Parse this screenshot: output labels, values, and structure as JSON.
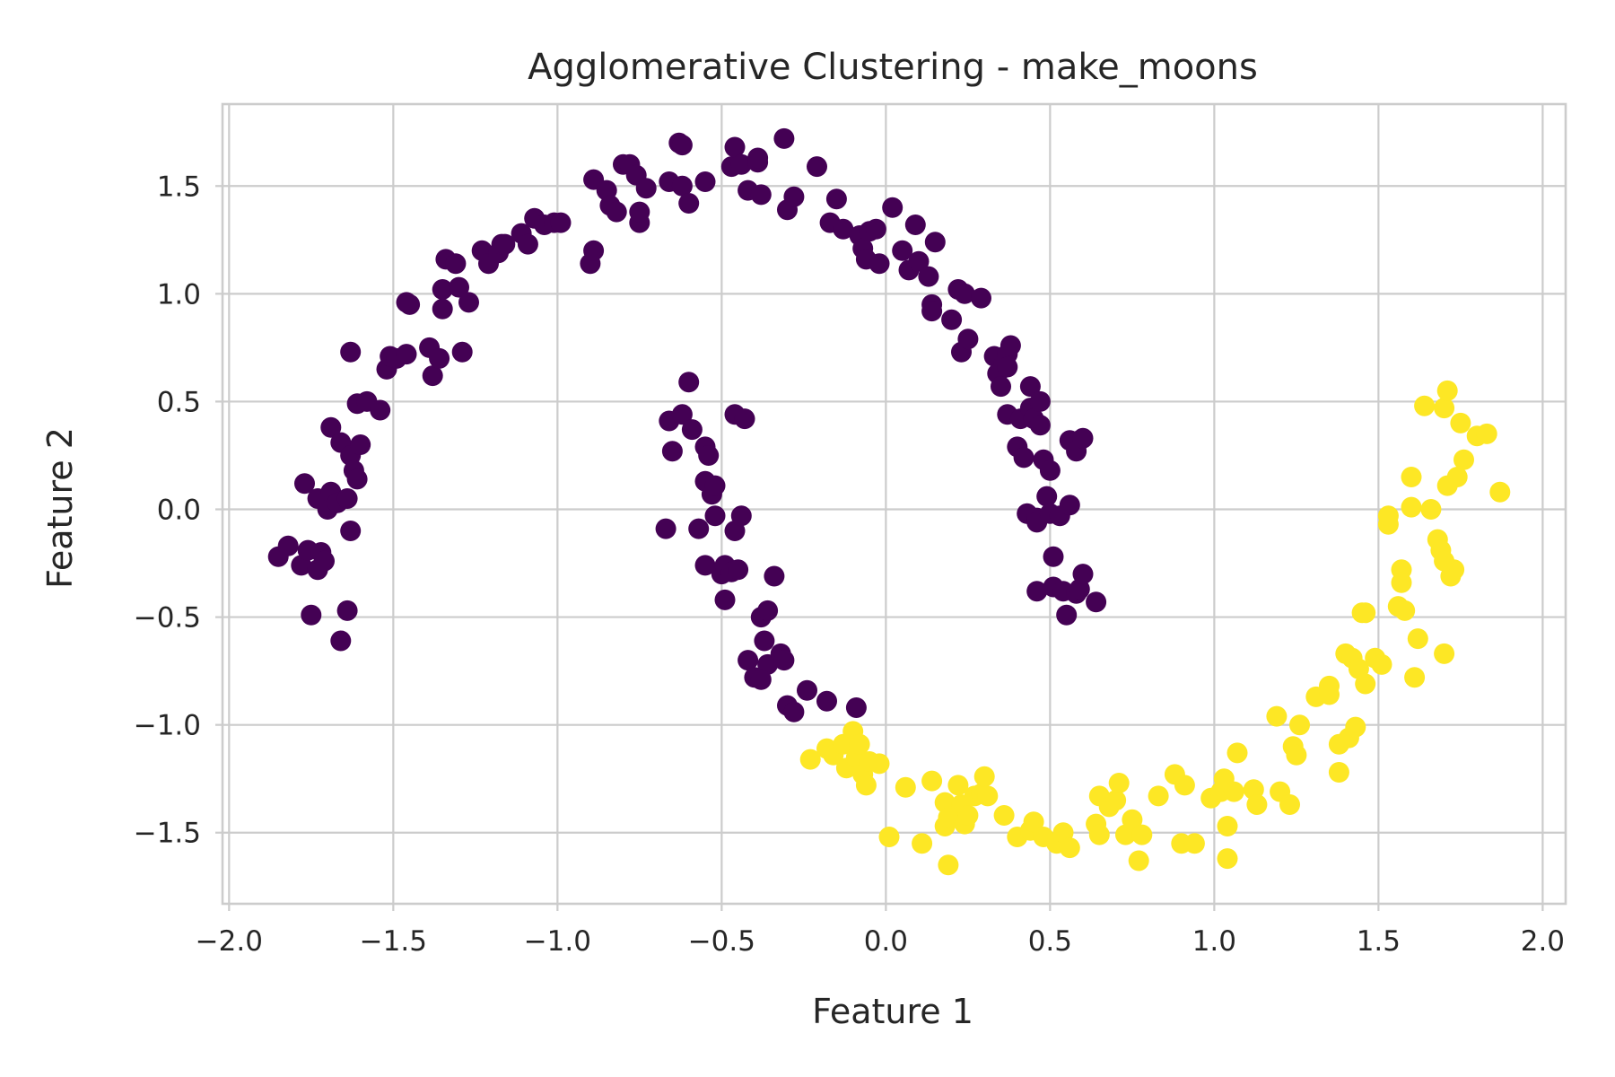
{
  "chart_data": {
    "type": "scatter",
    "title": "Agglomerative Clustering - make_moons",
    "xlabel": "Feature 1",
    "ylabel": "Feature 2",
    "xlim": [
      -2.02,
      2.07
    ],
    "ylim": [
      -1.83,
      1.88
    ],
    "xticks": [
      -2.0,
      -1.5,
      -1.0,
      -0.5,
      0.0,
      0.5,
      1.0,
      1.5,
      2.0
    ],
    "xtick_labels": [
      "−2.0",
      "−1.5",
      "−1.0",
      "−0.5",
      "0.0",
      "0.5",
      "1.0",
      "1.5",
      "2.0"
    ],
    "yticks": [
      -1.5,
      -1.0,
      -0.5,
      0.0,
      0.5,
      1.0,
      1.5
    ],
    "ytick_labels": [
      "−1.5",
      "−1.0",
      "−0.5",
      "0.0",
      "0.5",
      "1.0",
      "1.5"
    ],
    "grid": true,
    "series": [
      {
        "color": "#440154",
        "points": [
          [
            -1.85,
            -0.22
          ],
          [
            -1.82,
            -0.17
          ],
          [
            -1.78,
            -0.26
          ],
          [
            -1.76,
            -0.19
          ],
          [
            -1.75,
            -0.49
          ],
          [
            -1.73,
            -0.28
          ],
          [
            -1.72,
            -0.2
          ],
          [
            -1.71,
            -0.24
          ],
          [
            -1.77,
            0.12
          ],
          [
            -1.73,
            0.05
          ],
          [
            -1.7,
            0.0
          ],
          [
            -1.69,
            0.08
          ],
          [
            -1.67,
            0.03
          ],
          [
            -1.64,
            0.05
          ],
          [
            -1.63,
            -0.1
          ],
          [
            -1.66,
            -0.61
          ],
          [
            -1.64,
            -0.47
          ],
          [
            -1.69,
            0.38
          ],
          [
            -1.66,
            0.31
          ],
          [
            -1.63,
            0.25
          ],
          [
            -1.62,
            0.18
          ],
          [
            -1.61,
            0.14
          ],
          [
            -1.6,
            0.3
          ],
          [
            -1.63,
            0.73
          ],
          [
            -1.61,
            0.49
          ],
          [
            -1.58,
            0.5
          ],
          [
            -1.54,
            0.46
          ],
          [
            -1.52,
            0.65
          ],
          [
            -1.51,
            0.71
          ],
          [
            -1.49,
            0.7
          ],
          [
            -1.46,
            0.72
          ],
          [
            -1.46,
            0.96
          ],
          [
            -1.45,
            0.95
          ],
          [
            -1.39,
            0.75
          ],
          [
            -1.38,
            0.62
          ],
          [
            -1.36,
            0.7
          ],
          [
            -1.35,
            0.93
          ],
          [
            -1.35,
            1.02
          ],
          [
            -1.34,
            1.16
          ],
          [
            -1.31,
            1.14
          ],
          [
            -1.3,
            1.03
          ],
          [
            -1.29,
            0.73
          ],
          [
            -1.27,
            0.96
          ],
          [
            -1.23,
            1.2
          ],
          [
            -1.21,
            1.14
          ],
          [
            -1.18,
            1.19
          ],
          [
            -1.17,
            1.23
          ],
          [
            -1.16,
            1.23
          ],
          [
            -1.11,
            1.28
          ],
          [
            -1.09,
            1.23
          ],
          [
            -1.07,
            1.35
          ],
          [
            -1.04,
            1.32
          ],
          [
            -1.01,
            1.33
          ],
          [
            -0.99,
            1.33
          ],
          [
            -0.9,
            1.14
          ],
          [
            -0.89,
            1.2
          ],
          [
            -0.89,
            1.53
          ],
          [
            -0.85,
            1.48
          ],
          [
            -0.84,
            1.41
          ],
          [
            -0.82,
            1.38
          ],
          [
            -0.8,
            1.6
          ],
          [
            -0.78,
            1.6
          ],
          [
            -0.76,
            1.55
          ],
          [
            -0.75,
            1.33
          ],
          [
            -0.75,
            1.38
          ],
          [
            -0.73,
            1.49
          ],
          [
            -0.66,
            1.52
          ],
          [
            -0.63,
            1.7
          ],
          [
            -0.62,
            1.69
          ],
          [
            -0.62,
            1.5
          ],
          [
            -0.6,
            1.42
          ],
          [
            -0.55,
            1.52
          ],
          [
            -0.47,
            1.59
          ],
          [
            -0.46,
            1.68
          ],
          [
            -0.44,
            1.6
          ],
          [
            -0.42,
            1.48
          ],
          [
            -0.39,
            1.61
          ],
          [
            -0.39,
            1.63
          ],
          [
            -0.38,
            1.46
          ],
          [
            -0.31,
            1.72
          ],
          [
            -0.3,
            1.39
          ],
          [
            -0.28,
            1.45
          ],
          [
            -0.21,
            1.59
          ],
          [
            -0.17,
            1.33
          ],
          [
            -0.15,
            1.44
          ],
          [
            -0.13,
            1.3
          ],
          [
            -0.08,
            1.27
          ],
          [
            -0.07,
            1.21
          ],
          [
            -0.06,
            1.16
          ],
          [
            -0.05,
            1.29
          ],
          [
            -0.03,
            1.3
          ],
          [
            -0.02,
            1.14
          ],
          [
            0.02,
            1.4
          ],
          [
            0.05,
            1.2
          ],
          [
            0.07,
            1.11
          ],
          [
            0.09,
            1.32
          ],
          [
            0.1,
            1.15
          ],
          [
            0.13,
            1.08
          ],
          [
            0.14,
            0.95
          ],
          [
            0.14,
            0.92
          ],
          [
            0.15,
            1.24
          ],
          [
            0.2,
            0.88
          ],
          [
            0.22,
            1.02
          ],
          [
            0.23,
            0.73
          ],
          [
            0.24,
            1.0
          ],
          [
            0.25,
            0.79
          ],
          [
            0.29,
            0.98
          ],
          [
            0.33,
            0.71
          ],
          [
            0.34,
            0.63
          ],
          [
            0.35,
            0.57
          ],
          [
            0.36,
            0.68
          ],
          [
            0.37,
            0.72
          ],
          [
            0.37,
            0.44
          ],
          [
            0.37,
            0.66
          ],
          [
            0.38,
            0.76
          ],
          [
            0.4,
            0.29
          ],
          [
            0.41,
            0.42
          ],
          [
            0.42,
            0.24
          ],
          [
            0.43,
            -0.02
          ],
          [
            0.44,
            0.57
          ],
          [
            0.44,
            0.47
          ],
          [
            0.45,
            0.42
          ],
          [
            0.46,
            -0.04
          ],
          [
            0.46,
            -0.06
          ],
          [
            0.47,
            0.5
          ],
          [
            0.47,
            0.39
          ],
          [
            0.48,
            0.23
          ],
          [
            0.49,
            0.06
          ],
          [
            0.5,
            0.18
          ],
          [
            0.5,
            -0.02
          ],
          [
            0.51,
            -0.22
          ],
          [
            0.53,
            -0.03
          ],
          [
            0.55,
            -0.49
          ],
          [
            0.56,
            0.32
          ],
          [
            0.56,
            0.02
          ],
          [
            0.46,
            -0.38
          ],
          [
            0.51,
            -0.36
          ],
          [
            0.54,
            -0.38
          ],
          [
            0.58,
            -0.39
          ],
          [
            0.59,
            0.32
          ],
          [
            0.59,
            -0.37
          ],
          [
            0.6,
            -0.3
          ],
          [
            0.64,
            -0.43
          ],
          [
            0.58,
            0.27
          ],
          [
            0.6,
            0.33
          ],
          [
            -0.67,
            -0.09
          ],
          [
            -0.66,
            0.41
          ],
          [
            -0.65,
            0.27
          ],
          [
            -0.62,
            0.44
          ],
          [
            -0.6,
            0.59
          ],
          [
            -0.59,
            0.37
          ],
          [
            -0.57,
            -0.09
          ],
          [
            -0.55,
            0.29
          ],
          [
            -0.55,
            0.13
          ],
          [
            -0.55,
            -0.26
          ],
          [
            -0.54,
            0.25
          ],
          [
            -0.53,
            0.07
          ],
          [
            -0.52,
            -0.03
          ],
          [
            -0.52,
            0.11
          ],
          [
            -0.5,
            -0.3
          ],
          [
            -0.49,
            -0.26
          ],
          [
            -0.49,
            -0.42
          ],
          [
            -0.47,
            -0.29
          ],
          [
            -0.46,
            0.44
          ],
          [
            -0.46,
            -0.1
          ],
          [
            -0.45,
            -0.28
          ],
          [
            -0.44,
            -0.03
          ],
          [
            -0.43,
            0.42
          ],
          [
            -0.42,
            -0.7
          ],
          [
            -0.4,
            -0.78
          ],
          [
            -0.38,
            -0.5
          ],
          [
            -0.37,
            -0.61
          ],
          [
            -0.36,
            -0.47
          ],
          [
            -0.36,
            -0.72
          ],
          [
            -0.34,
            -0.31
          ],
          [
            -0.32,
            -0.67
          ],
          [
            -0.31,
            -0.7
          ],
          [
            -0.3,
            -0.91
          ],
          [
            -0.28,
            -0.94
          ],
          [
            -0.24,
            -0.84
          ],
          [
            -0.18,
            -0.89
          ],
          [
            -0.09,
            -0.92
          ],
          [
            -0.38,
            -0.79
          ]
        ]
      },
      {
        "color": "#fde725",
        "points": [
          [
            -0.23,
            -1.16
          ],
          [
            -0.18,
            -1.11
          ],
          [
            -0.16,
            -1.14
          ],
          [
            -0.13,
            -1.09
          ],
          [
            -0.12,
            -1.2
          ],
          [
            -0.1,
            -1.03
          ],
          [
            -0.09,
            -1.15
          ],
          [
            -0.08,
            -1.09
          ],
          [
            -0.07,
            -1.23
          ],
          [
            -0.06,
            -1.28
          ],
          [
            -0.05,
            -1.17
          ],
          [
            -0.02,
            -1.18
          ],
          [
            0.01,
            -1.52
          ],
          [
            0.06,
            -1.29
          ],
          [
            0.11,
            -1.55
          ],
          [
            0.14,
            -1.26
          ],
          [
            0.18,
            -1.47
          ],
          [
            0.18,
            -1.36
          ],
          [
            0.19,
            -1.43
          ],
          [
            0.19,
            -1.65
          ],
          [
            0.22,
            -1.28
          ],
          [
            0.23,
            -1.37
          ],
          [
            0.24,
            -1.46
          ],
          [
            0.25,
            -1.42
          ],
          [
            0.27,
            -1.33
          ],
          [
            0.29,
            -1.32
          ],
          [
            0.3,
            -1.24
          ],
          [
            0.31,
            -1.33
          ],
          [
            0.36,
            -1.42
          ],
          [
            0.4,
            -1.52
          ],
          [
            0.44,
            -1.49
          ],
          [
            0.45,
            -1.45
          ],
          [
            0.48,
            -1.52
          ],
          [
            0.52,
            -1.55
          ],
          [
            0.54,
            -1.5
          ],
          [
            0.56,
            -1.57
          ],
          [
            0.64,
            -1.46
          ],
          [
            0.65,
            -1.33
          ],
          [
            0.65,
            -1.51
          ],
          [
            0.68,
            -1.38
          ],
          [
            0.7,
            -1.35
          ],
          [
            0.71,
            -1.27
          ],
          [
            0.73,
            -1.51
          ],
          [
            0.75,
            -1.44
          ],
          [
            0.77,
            -1.63
          ],
          [
            0.78,
            -1.51
          ],
          [
            0.83,
            -1.33
          ],
          [
            0.88,
            -1.23
          ],
          [
            0.9,
            -1.55
          ],
          [
            0.91,
            -1.28
          ],
          [
            0.94,
            -1.55
          ],
          [
            0.99,
            -1.34
          ],
          [
            1.02,
            -1.31
          ],
          [
            1.03,
            -1.25
          ],
          [
            1.04,
            -1.62
          ],
          [
            1.04,
            -1.47
          ],
          [
            1.06,
            -1.31
          ],
          [
            1.07,
            -1.13
          ],
          [
            1.12,
            -1.3
          ],
          [
            1.13,
            -1.37
          ],
          [
            1.19,
            -0.96
          ],
          [
            1.2,
            -1.31
          ],
          [
            1.23,
            -1.37
          ],
          [
            1.24,
            -1.1
          ],
          [
            1.25,
            -1.14
          ],
          [
            1.26,
            -1.0
          ],
          [
            1.31,
            -0.87
          ],
          [
            1.35,
            -0.82
          ],
          [
            1.35,
            -0.86
          ],
          [
            1.38,
            -1.09
          ],
          [
            1.38,
            -1.22
          ],
          [
            1.4,
            -0.67
          ],
          [
            1.41,
            -1.06
          ],
          [
            1.42,
            -0.69
          ],
          [
            1.43,
            -1.01
          ],
          [
            1.44,
            -0.74
          ],
          [
            1.45,
            -0.48
          ],
          [
            1.46,
            -0.48
          ],
          [
            1.46,
            -0.81
          ],
          [
            1.49,
            -0.69
          ],
          [
            1.51,
            -0.72
          ],
          [
            1.53,
            -0.07
          ],
          [
            1.53,
            -0.03
          ],
          [
            1.56,
            -0.45
          ],
          [
            1.57,
            -0.28
          ],
          [
            1.57,
            -0.34
          ],
          [
            1.58,
            -0.47
          ],
          [
            1.6,
            0.15
          ],
          [
            1.6,
            0.01
          ],
          [
            1.61,
            -0.78
          ],
          [
            1.62,
            -0.6
          ],
          [
            1.64,
            0.48
          ],
          [
            1.66,
            0.0
          ],
          [
            1.68,
            -0.14
          ],
          [
            1.69,
            -0.19
          ],
          [
            1.7,
            -0.67
          ],
          [
            1.7,
            0.47
          ],
          [
            1.71,
            0.55
          ],
          [
            1.71,
            0.11
          ],
          [
            1.72,
            -0.31
          ],
          [
            1.73,
            -0.28
          ],
          [
            1.74,
            0.15
          ],
          [
            1.75,
            0.4
          ],
          [
            1.76,
            0.23
          ],
          [
            1.8,
            0.34
          ],
          [
            1.83,
            0.35
          ],
          [
            1.87,
            0.08
          ],
          [
            1.7,
            -0.24
          ]
        ]
      }
    ]
  }
}
